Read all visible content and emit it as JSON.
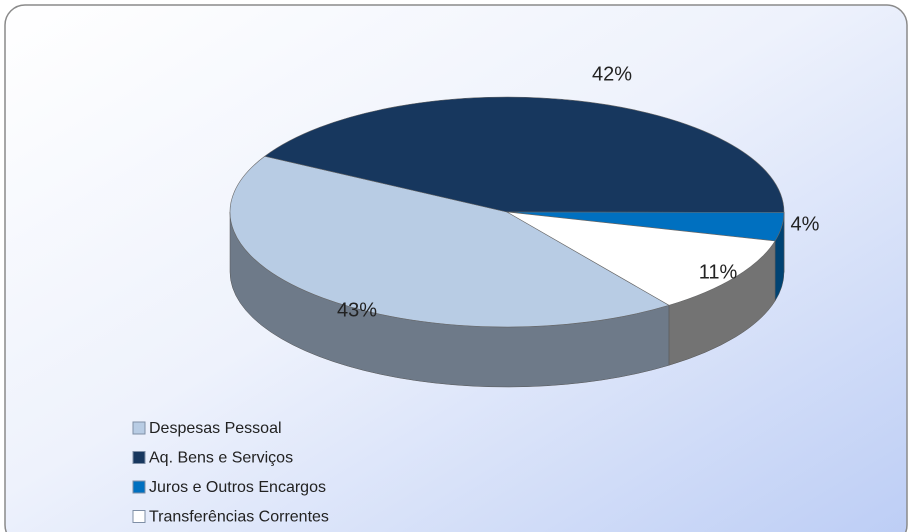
{
  "chart_data": {
    "type": "pie",
    "categories": [
      "Despesas Pessoal",
      "Aq. Bens e Serviços",
      "Juros e Outros Encargos",
      "Transferências Correntes"
    ],
    "values": [
      43,
      42,
      4,
      11
    ],
    "value_labels": [
      "43%",
      "42%",
      "4%",
      "11%"
    ],
    "colors": [
      "#b8cce4",
      "#17375e",
      "#0070c0",
      "#ffffff"
    ],
    "legend": "bottom-left"
  }
}
